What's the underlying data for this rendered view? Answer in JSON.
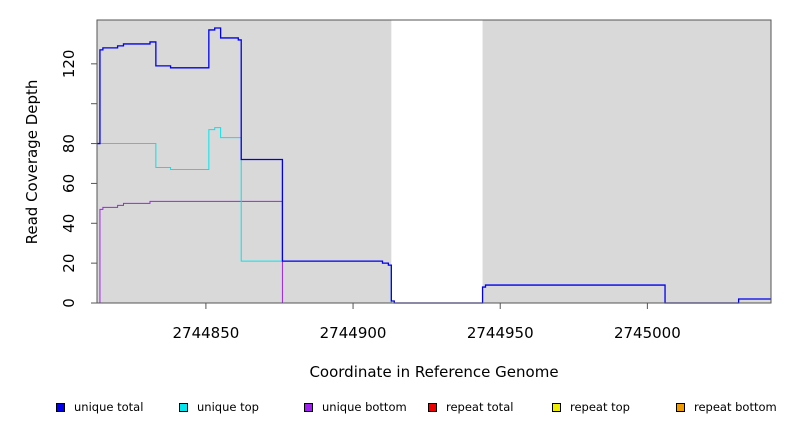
{
  "chart_data": {
    "type": "line",
    "xlabel": "Coordinate in Reference Genome",
    "ylabel": "Read Coverage Depth",
    "xlim": [
      2744813,
      2745042
    ],
    "ylim": [
      0,
      142
    ],
    "x_ticks": [
      2744850,
      2744900,
      2744950,
      2745000
    ],
    "x_tick_labels": [
      "2744850",
      "2744900",
      "2744950",
      "2745000"
    ],
    "y_ticks": [
      0,
      20,
      40,
      60,
      80,
      100,
      120
    ],
    "y_tick_labels": [
      "0",
      "20",
      "40",
      "60",
      "80",
      "",
      "120"
    ],
    "background_color": "#d9d9d9",
    "unshaded_regions": [
      [
        2744913,
        2744944
      ]
    ],
    "grid": false,
    "legend_position": "bottom",
    "series": [
      {
        "name": "unique total",
        "color": "#0000ee",
        "x": [
          2744813,
          2744814,
          2744814,
          2744815,
          2744815,
          2744820,
          2744820,
          2744822,
          2744822,
          2744831,
          2744831,
          2744833,
          2744833,
          2744838,
          2744838,
          2744851,
          2744851,
          2744853,
          2744853,
          2744855,
          2744855,
          2744861,
          2744861,
          2744862,
          2744862,
          2744876,
          2744876,
          2744910,
          2744910,
          2744912,
          2744912,
          2744913,
          2744913,
          2744914,
          2744914,
          2744944,
          2744944,
          2744945,
          2744945,
          2745006,
          2745006,
          2745031,
          2745031,
          2745042
        ],
        "y": [
          80,
          80,
          127,
          127,
          128,
          128,
          129,
          129,
          130,
          130,
          131,
          131,
          119,
          119,
          118,
          118,
          137,
          137,
          138,
          138,
          133,
          133,
          132,
          132,
          72,
          72,
          21,
          21,
          20,
          20,
          19,
          19,
          1,
          1,
          0,
          0,
          8,
          8,
          9,
          9,
          0,
          0,
          2,
          2
        ]
      },
      {
        "name": "unique top",
        "color": "#00e5ee",
        "x": [
          2744813,
          2744833,
          2744833,
          2744838,
          2744838,
          2744851,
          2744851,
          2744853,
          2744853,
          2744855,
          2744855,
          2744862,
          2744862,
          2744876,
          2744876,
          2744910,
          2744910,
          2744912,
          2744912,
          2744913,
          2744913,
          2744944,
          2744944,
          2745042
        ],
        "y": [
          80,
          80,
          68,
          68,
          67,
          67,
          87,
          87,
          88,
          88,
          83,
          83,
          21,
          21,
          21,
          21,
          20,
          20,
          19,
          19,
          0,
          0,
          0,
          0
        ]
      },
      {
        "name": "unique bottom",
        "color": "#a020f0",
        "x": [
          2744813,
          2744814,
          2744814,
          2744815,
          2744815,
          2744820,
          2744820,
          2744822,
          2744822,
          2744831,
          2744831,
          2744876,
          2744876,
          2745042
        ],
        "y": [
          0,
          0,
          47,
          47,
          48,
          48,
          49,
          49,
          50,
          50,
          51,
          51,
          0,
          0
        ]
      },
      {
        "name": "repeat total",
        "color": "#ee0000",
        "x": [
          2744813,
          2745042
        ],
        "y": [
          0,
          0
        ]
      },
      {
        "name": "repeat top",
        "color": "#eeee00",
        "x": [
          2744813,
          2745042
        ],
        "y": [
          0,
          0
        ]
      },
      {
        "name": "repeat bottom",
        "color": "#ee9a00",
        "x": [
          2744813,
          2744876
        ],
        "y": [
          0,
          0
        ]
      }
    ]
  }
}
